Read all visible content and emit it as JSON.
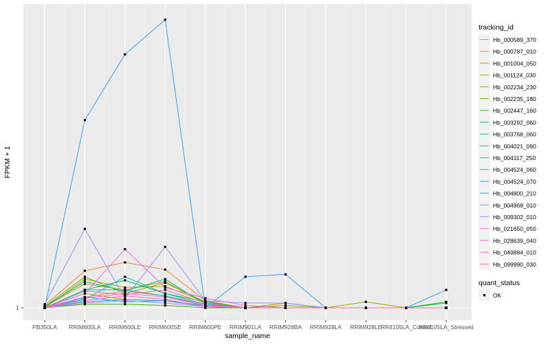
{
  "chart_data": {
    "type": "line",
    "xlabel": "sample_name",
    "ylabel": "FPKM + 1",
    "categories": [
      "PB350LA",
      "RRIM600LA",
      "RRIM600LE",
      "RRIM600SE",
      "RRIM600PE",
      "RRIM901LA",
      "RRIM928BA",
      "RRIM928LA",
      "RRIM928LE",
      "RRII105LA_Control",
      "RRII105LA_Stressed"
    ],
    "y_tick_labels": [
      "1"
    ],
    "legend": {
      "title": "tracking_id",
      "entries": [
        "Hb_000589_370",
        "Hb_000787_010",
        "Hb_001004_050",
        "Hb_001124_030",
        "Hb_002234_230",
        "Hb_002235_180",
        "Hb_002447_160",
        "Hb_003292_060",
        "Hb_003768_060",
        "Hb_004021_090",
        "Hb_004117_250",
        "Hb_004524_060",
        "Hb_004524_070",
        "Hb_004800_210",
        "Hb_004968_010",
        "Hb_009302_010",
        "Hb_021650_050",
        "Hb_028639_040",
        "Hb_049884_010",
        "Hb_099990_030"
      ],
      "colors": [
        "#F8766D",
        "#EA8331",
        "#D89000",
        "#C09B00",
        "#A3A500",
        "#7CAE00",
        "#39B600",
        "#00BB4E",
        "#00BF7D",
        "#00C1A3",
        "#00BFC4",
        "#00BAE0",
        "#00B0F6",
        "#35A2FF",
        "#9590FF",
        "#C77CFF",
        "#E76BF3",
        "#FA62DB",
        "#FF62BC",
        "#FF6C91"
      ],
      "placement": "right"
    },
    "shape_legend": {
      "title": "quant_status",
      "entries": [
        "OK"
      ]
    },
    "ylim": [
      1,
      3.41
    ],
    "grid": true,
    "series": [
      {
        "name": "Hb_000589_370",
        "values": [
          1.0,
          1.09,
          1.14,
          1.1,
          1.03,
          1.0,
          1.0,
          1.0,
          1.0,
          1.0,
          1.0
        ]
      },
      {
        "name": "Hb_000787_010",
        "values": [
          1.02,
          1.31,
          1.38,
          1.32,
          1.06,
          1.0,
          1.0,
          1.0,
          1.0,
          1.0,
          1.0
        ]
      },
      {
        "name": "Hb_001004_050",
        "values": [
          1.01,
          1.2,
          1.15,
          1.22,
          1.04,
          1.0,
          1.0,
          1.0,
          1.0,
          1.0,
          1.0
        ]
      },
      {
        "name": "Hb_001124_030",
        "values": [
          1.0,
          1.12,
          1.07,
          1.06,
          1.02,
          1.0,
          1.04,
          1.0,
          1.0,
          1.0,
          1.0
        ]
      },
      {
        "name": "Hb_002234_230",
        "values": [
          1.0,
          1.24,
          1.17,
          1.18,
          1.05,
          1.0,
          1.0,
          1.0,
          1.05,
          1.0,
          1.0
        ]
      },
      {
        "name": "Hb_002235_180",
        "values": [
          1.01,
          1.26,
          1.12,
          1.21,
          1.05,
          1.0,
          1.02,
          1.0,
          1.0,
          1.0,
          1.0
        ]
      },
      {
        "name": "Hb_002447_160",
        "values": [
          1.0,
          1.03,
          1.03,
          1.02,
          1.0,
          1.0,
          1.0,
          1.0,
          1.0,
          1.0,
          1.05
        ]
      },
      {
        "name": "Hb_003292_060",
        "values": [
          1.0,
          1.15,
          1.23,
          1.12,
          1.05,
          1.0,
          1.0,
          1.0,
          1.0,
          1.0,
          1.04
        ]
      },
      {
        "name": "Hb_003768_060",
        "values": [
          1.01,
          1.22,
          1.14,
          1.24,
          1.03,
          1.0,
          1.0,
          1.0,
          1.0,
          1.0,
          1.0
        ]
      },
      {
        "name": "Hb_004021_090",
        "values": [
          1.0,
          1.15,
          1.15,
          1.1,
          1.02,
          1.0,
          1.0,
          1.0,
          1.0,
          1.0,
          1.0
        ]
      },
      {
        "name": "Hb_004117_250",
        "values": [
          1.0,
          1.07,
          1.26,
          1.12,
          1.03,
          1.0,
          1.0,
          1.0,
          1.0,
          1.0,
          1.0
        ]
      },
      {
        "name": "Hb_004524_060",
        "values": [
          1.0,
          1.05,
          1.07,
          1.06,
          1.01,
          1.0,
          1.0,
          1.0,
          1.0,
          1.0,
          1.0
        ]
      },
      {
        "name": "Hb_004524_070",
        "values": [
          1.0,
          1.09,
          1.05,
          1.06,
          1.02,
          1.0,
          1.0,
          1.0,
          1.0,
          1.0,
          1.0
        ]
      },
      {
        "name": "Hb_004800_210",
        "values": [
          1.0,
          2.57,
          3.12,
          3.41,
          1.0,
          1.26,
          1.28,
          1.0,
          1.0,
          1.0,
          1.15
        ]
      },
      {
        "name": "Hb_004968_010",
        "values": [
          1.03,
          1.66,
          1.08,
          1.51,
          1.06,
          1.04,
          1.04,
          1.0,
          1.0,
          1.0,
          1.0
        ]
      },
      {
        "name": "Hb_009302_010",
        "values": [
          1.0,
          1.04,
          1.06,
          1.04,
          1.01,
          1.0,
          1.0,
          1.0,
          1.0,
          1.0,
          1.0
        ]
      },
      {
        "name": "Hb_021650_050",
        "values": [
          1.0,
          1.12,
          1.49,
          1.17,
          1.08,
          1.02,
          1.0,
          1.0,
          1.0,
          1.0,
          1.0
        ]
      },
      {
        "name": "Hb_028639_040",
        "values": [
          1.0,
          1.08,
          1.12,
          1.09,
          1.02,
          1.0,
          1.0,
          1.0,
          1.0,
          1.0,
          1.0
        ]
      },
      {
        "name": "Hb_049884_010",
        "values": [
          1.0,
          1.06,
          1.1,
          1.07,
          1.01,
          1.0,
          1.0,
          1.0,
          1.0,
          1.0,
          1.0
        ]
      },
      {
        "name": "Hb_099990_030",
        "values": [
          1.0,
          1.14,
          1.11,
          1.15,
          1.04,
          1.0,
          1.0,
          1.0,
          1.0,
          1.0,
          1.0
        ]
      }
    ]
  }
}
